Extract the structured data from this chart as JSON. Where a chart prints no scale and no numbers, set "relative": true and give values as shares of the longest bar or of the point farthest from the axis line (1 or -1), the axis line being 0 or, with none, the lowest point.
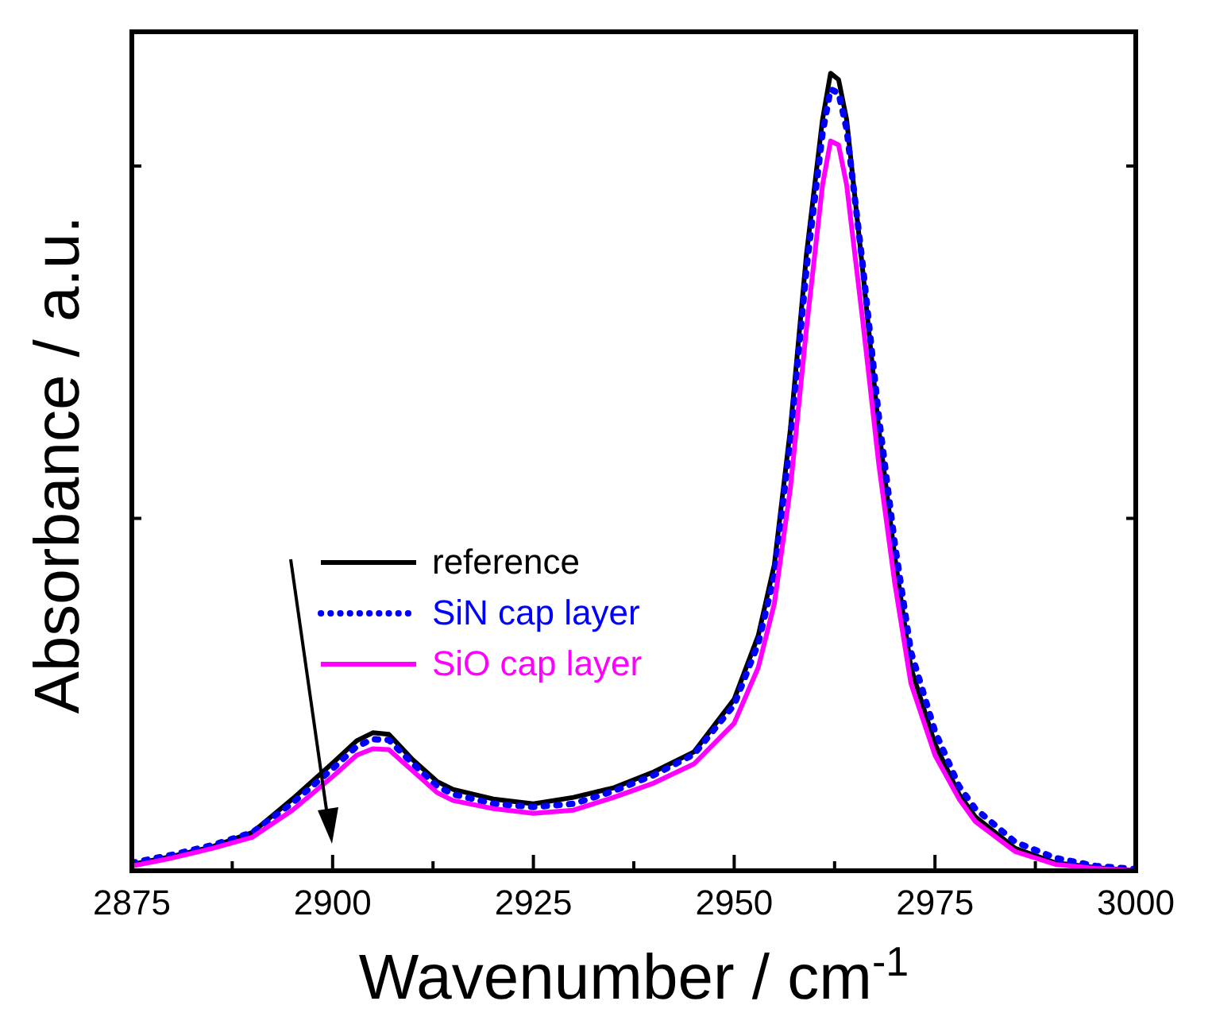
{
  "chart_data": {
    "type": "line",
    "relative": true,
    "xlabel": "Wavenumber / cm$^{-1}$",
    "ylabel": "Absorbance / a.u.",
    "xlim": [
      2875,
      3000
    ],
    "xticks": [
      2875,
      2900,
      2925,
      2950,
      2975,
      3000
    ],
    "tick_labels": "x",
    "legend": "left",
    "grid": false,
    "marker": "none",
    "x": [
      2875,
      2880,
      2885,
      2890,
      2895,
      2900,
      2903,
      2905,
      2907,
      2910,
      2913,
      2915,
      2920,
      2925,
      2930,
      2935,
      2940,
      2945,
      2950,
      2953,
      2955,
      2957,
      2959,
      2961,
      2962,
      2963,
      2964,
      2966,
      2968,
      2970,
      2972,
      2975,
      2978,
      2980,
      2985,
      2990,
      2995,
      3000
    ],
    "series": [
      {
        "name": "reference",
        "color": "#000000",
        "line_style": "solid",
        "values": [
          0.008,
          0.018,
          0.03,
          0.048,
          0.09,
          0.135,
          0.163,
          0.173,
          0.171,
          0.139,
          0.112,
          0.102,
          0.09,
          0.084,
          0.092,
          0.104,
          0.124,
          0.149,
          0.215,
          0.295,
          0.384,
          0.554,
          0.773,
          0.942,
          1,
          0.992,
          0.942,
          0.753,
          0.554,
          0.394,
          0.255,
          0.159,
          0.096,
          0.068,
          0.028,
          0.01,
          0.004,
          0
        ]
      },
      {
        "name": "SiN cap layer",
        "color": "#0000ff",
        "line_style": "dotted",
        "values": [
          0.01,
          0.02,
          0.032,
          0.048,
          0.085,
          0.128,
          0.156,
          0.165,
          0.164,
          0.134,
          0.106,
          0.096,
          0.084,
          0.08,
          0.084,
          0.1,
          0.12,
          0.146,
          0.208,
          0.285,
          0.37,
          0.54,
          0.755,
          0.925,
          0.98,
          0.975,
          0.93,
          0.76,
          0.57,
          0.41,
          0.275,
          0.175,
          0.106,
          0.078,
          0.036,
          0.016,
          0.006,
          0.002
        ]
      },
      {
        "name": "SiO cap layer",
        "color": "#ff00ff",
        "line_style": "solid",
        "values": [
          0.006,
          0.016,
          0.028,
          0.042,
          0.076,
          0.118,
          0.145,
          0.153,
          0.152,
          0.125,
          0.098,
          0.088,
          0.078,
          0.072,
          0.076,
          0.092,
          0.11,
          0.134,
          0.185,
          0.255,
          0.335,
          0.48,
          0.68,
          0.86,
          0.915,
          0.91,
          0.86,
          0.69,
          0.51,
          0.36,
          0.235,
          0.145,
          0.09,
          0.062,
          0.024,
          0.008,
          0.003,
          0
        ]
      }
    ]
  }
}
